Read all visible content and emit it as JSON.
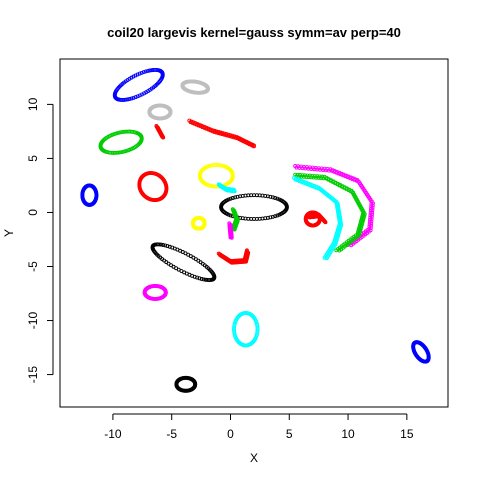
{
  "chart_data": {
    "type": "scatter",
    "title": "coil20 largevis kernel=gauss symm=av perp=40",
    "xlabel": "X",
    "ylabel": "Y",
    "xlim": [
      -14.5,
      18.5
    ],
    "ylim": [
      -18,
      14.2
    ],
    "xticks": [
      -10,
      -5,
      0,
      5,
      10,
      15
    ],
    "yticks": [
      -15,
      -10,
      -5,
      0,
      5,
      10
    ],
    "grid": false,
    "legend": "none",
    "marker": "open-circle",
    "clusters": [
      {
        "color": "#0000ff",
        "shape": "loop",
        "center": [
          -7.8,
          11.8
        ],
        "rx": 2.3,
        "ry": 0.9,
        "rot": 30
      },
      {
        "color": "#bebebe",
        "shape": "loop",
        "center": [
          -3.0,
          11.6
        ],
        "rx": 1.1,
        "ry": 0.5,
        "rot": -10
      },
      {
        "color": "#bebebe",
        "shape": "loop",
        "center": [
          -6.0,
          9.3
        ],
        "rx": 0.9,
        "ry": 0.6,
        "rot": 0
      },
      {
        "color": "#00cd00",
        "shape": "loop",
        "center": [
          -9.3,
          6.5
        ],
        "rx": 1.8,
        "ry": 0.9,
        "rot": 15
      },
      {
        "color": "#0000ff",
        "shape": "loop",
        "center": [
          -12.0,
          1.6
        ],
        "rx": 0.6,
        "ry": 0.9,
        "rot": 0
      },
      {
        "color": "#ff0000",
        "shape": "loop",
        "center": [
          -6.6,
          2.4
        ],
        "rx": 1.1,
        "ry": 1.3,
        "rot": 30
      },
      {
        "color": "#ffff00",
        "shape": "loop",
        "center": [
          -1.2,
          3.4
        ],
        "rx": 1.4,
        "ry": 1.0,
        "rot": 0
      },
      {
        "color": "#ffff00",
        "shape": "loop",
        "center": [
          -2.7,
          -1.0
        ],
        "rx": 0.5,
        "ry": 0.5,
        "rot": 0
      },
      {
        "color": "#000000",
        "shape": "loop",
        "center": [
          -4.0,
          -4.6
        ],
        "rx": 3.0,
        "ry": 0.8,
        "rot": -30
      },
      {
        "color": "#ff00ff",
        "shape": "loop",
        "center": [
          -6.4,
          -7.4
        ],
        "rx": 0.9,
        "ry": 0.6,
        "rot": 0
      },
      {
        "color": "#00ffff",
        "shape": "loop",
        "center": [
          1.3,
          -10.8
        ],
        "rx": 1.0,
        "ry": 1.5,
        "rot": 0
      },
      {
        "color": "#000000",
        "shape": "loop",
        "center": [
          -3.8,
          -15.9
        ],
        "rx": 0.8,
        "ry": 0.6,
        "rot": 0
      },
      {
        "color": "#0000ff",
        "shape": "loop",
        "center": [
          16.2,
          -12.9
        ],
        "rx": 0.5,
        "ry": 1.0,
        "rot": 30
      },
      {
        "color": "#ff0000",
        "shape": "loop",
        "center": [
          7.0,
          -0.6
        ],
        "rx": 0.6,
        "ry": 0.6,
        "rot": 0
      },
      {
        "color": "#000000",
        "shape": "loop",
        "center": [
          2.0,
          0.5
        ],
        "rx": 2.8,
        "ry": 1.1,
        "rot": 0
      },
      {
        "color": "#ff0000",
        "shape": "arc",
        "points": [
          [
            -3.5,
            8.5
          ],
          [
            -1.5,
            7.6
          ],
          [
            0.5,
            7.0
          ],
          [
            2.0,
            6.2
          ]
        ]
      },
      {
        "color": "#ff0000",
        "shape": "arc",
        "points": [
          [
            -6.3,
            8.0
          ],
          [
            -5.8,
            7.0
          ]
        ]
      },
      {
        "color": "#ff0000",
        "shape": "arc",
        "points": [
          [
            -1.0,
            -3.8
          ],
          [
            0.0,
            -4.5
          ],
          [
            1.2,
            -4.4
          ],
          [
            1.4,
            -3.5
          ]
        ]
      },
      {
        "color": "#00ffff",
        "shape": "arc",
        "points": [
          [
            -1.0,
            2.6
          ],
          [
            -0.4,
            2.2
          ],
          [
            0.3,
            2.1
          ]
        ]
      },
      {
        "color": "#00cd00",
        "shape": "arc",
        "points": [
          [
            0.2,
            0.3
          ],
          [
            0.5,
            -0.6
          ],
          [
            0.2,
            -1.5
          ]
        ]
      },
      {
        "color": "#ff00ff",
        "shape": "arc",
        "points": [
          [
            -0.1,
            -1.0
          ],
          [
            0.0,
            -2.3
          ]
        ]
      },
      {
        "color": "#ff00ff",
        "shape": "arc",
        "points": [
          [
            5.5,
            4.3
          ],
          [
            8.5,
            4.0
          ],
          [
            10.8,
            3.0
          ],
          [
            12.0,
            1.0
          ],
          [
            11.8,
            -1.5
          ],
          [
            10.0,
            -3.0
          ]
        ]
      },
      {
        "color": "#00cd00",
        "shape": "arc",
        "points": [
          [
            5.5,
            3.5
          ],
          [
            8.0,
            3.3
          ],
          [
            10.3,
            2.0
          ],
          [
            11.3,
            0.0
          ],
          [
            10.8,
            -2.0
          ],
          [
            9.0,
            -3.5
          ]
        ]
      },
      {
        "color": "#00ffff",
        "shape": "arc",
        "points": [
          [
            5.4,
            3.2
          ],
          [
            7.5,
            2.3
          ],
          [
            9.0,
            1.0
          ],
          [
            9.3,
            -1.0
          ],
          [
            8.8,
            -2.8
          ],
          [
            8.0,
            -4.2
          ]
        ]
      },
      {
        "color": "#ff0000",
        "shape": "arc",
        "points": [
          [
            6.6,
            -0.3
          ],
          [
            7.5,
            -0.2
          ],
          [
            8.0,
            -0.8
          ]
        ]
      }
    ]
  }
}
